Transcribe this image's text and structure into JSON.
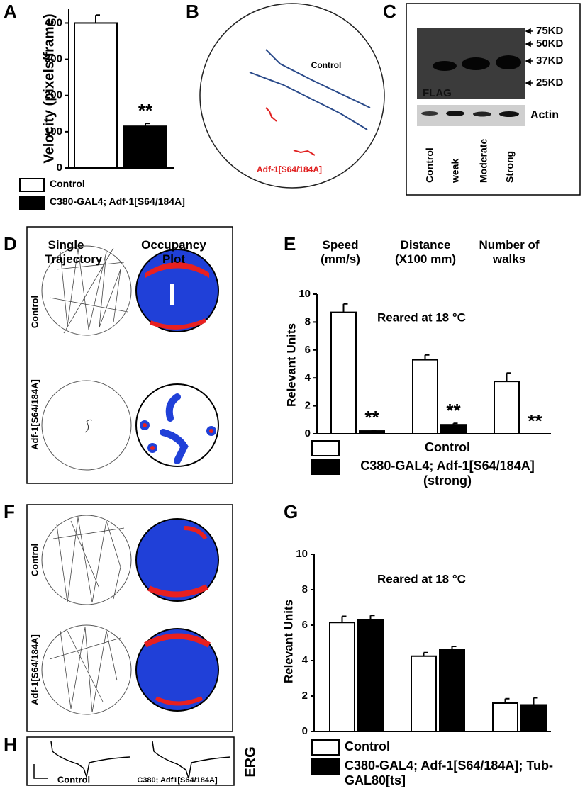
{
  "panels": {
    "labels": [
      "A",
      "B",
      "C",
      "D",
      "E",
      "F",
      "G",
      "H"
    ]
  },
  "panel_b": {
    "trajectory_labels": [
      "Control",
      "Adf-1[S64/184A]"
    ]
  },
  "panel_c": {
    "markers": [
      "75KD",
      "50KD",
      "37KD",
      "25KD"
    ],
    "blot_labels": [
      "FLAG",
      "Actin"
    ],
    "lanes": [
      "Control",
      "weak",
      "Moderate",
      "Strong"
    ]
  },
  "panel_d": {
    "columns": [
      "Single Trajectory",
      "Occupancy Plot"
    ],
    "rows": [
      "Control",
      "Adf-1[S64/184A]"
    ]
  },
  "panel_f": {
    "rows": [
      "Control",
      "Adf-1[S64/184A]"
    ]
  },
  "panel_h": {
    "traces": [
      "Control",
      "C380; Adf1[S64/184A]"
    ],
    "label": "ERG"
  },
  "chart_data": [
    {
      "type": "bar",
      "y_label": "Velocity (pixels/frame)",
      "categories": [
        null
      ],
      "series": [
        {
          "name": "Control",
          "color": "#ffffff",
          "values": [
            400
          ],
          "errors": [
            22
          ]
        },
        {
          "name": "C380-GAL4; Adf-1[S64/184A]",
          "color": "#000000",
          "values": [
            115
          ],
          "errors": [
            8
          ]
        }
      ],
      "annotations": [
        "**"
      ],
      "ylim": [
        0,
        440
      ],
      "yticks": [
        0,
        100,
        200,
        300,
        400
      ]
    },
    {
      "type": "bar",
      "y_label": "Relevant Units",
      "note": "Reared at 18 °C",
      "categories": [
        "Speed (mm/s)",
        "Distance (X100 mm)",
        "Number of walks"
      ],
      "series": [
        {
          "name": "Control",
          "color": "#ffffff",
          "values": [
            8.7,
            5.3,
            3.75
          ],
          "errors": [
            0.6,
            0.35,
            0.6
          ]
        },
        {
          "name": "C380-GAL4; Adf-1[S64/184A] (strong)",
          "color": "#000000",
          "values": [
            0.2,
            0.65,
            0
          ],
          "errors": [
            0.05,
            0.1,
            0
          ]
        }
      ],
      "annotations": [
        "**",
        "**",
        "**"
      ],
      "ylim": [
        0,
        10
      ],
      "yticks": [
        0,
        2,
        4,
        6,
        8,
        10
      ]
    },
    {
      "type": "bar",
      "y_label": "Relevant Units",
      "note": "Reared at 18 °C",
      "categories": [
        null,
        null,
        null
      ],
      "series": [
        {
          "name": "Control",
          "color": "#ffffff",
          "values": [
            6.15,
            4.25,
            1.6
          ],
          "errors": [
            0.35,
            0.2,
            0.25
          ]
        },
        {
          "name": "C380-GAL4; Adf-1[S64/184A]; Tub-GAL80[ts]",
          "color": "#000000",
          "values": [
            6.3,
            4.6,
            1.5
          ],
          "errors": [
            0.25,
            0.2,
            0.4
          ]
        }
      ],
      "ylim": [
        0,
        10
      ],
      "yticks": [
        0,
        2,
        4,
        6,
        8,
        10
      ]
    }
  ]
}
